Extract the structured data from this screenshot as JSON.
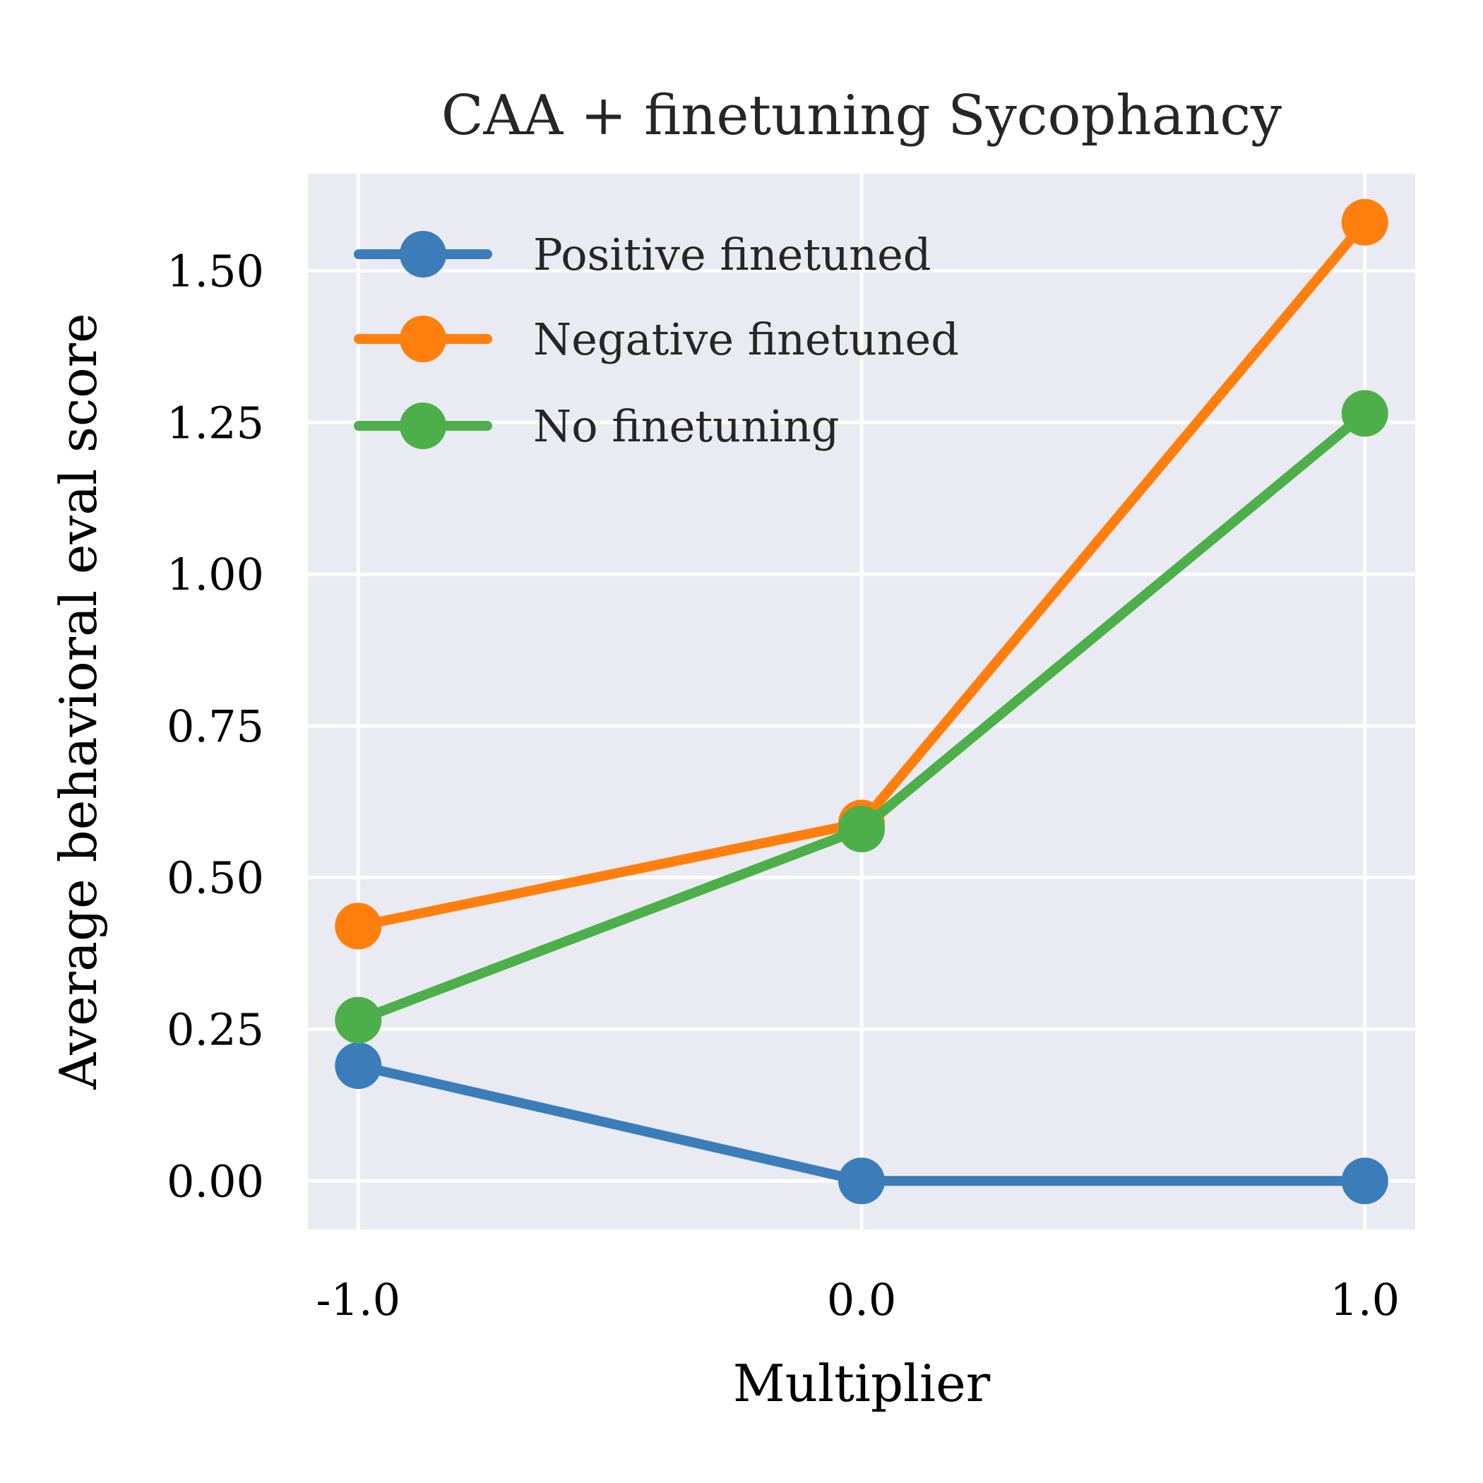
{
  "chart_data": {
    "type": "line",
    "title": "CAA + finetuning Sycophancy",
    "xlabel": "Multiplier",
    "ylabel": "Average behavioral eval score",
    "x": [
      -1.0,
      0.0,
      1.0
    ],
    "x_tick_labels": [
      "-1.0",
      "0.0",
      "1.0"
    ],
    "y_ticks": [
      0.0,
      0.25,
      0.5,
      0.75,
      1.0,
      1.25,
      1.5
    ],
    "y_tick_labels": [
      "0.00",
      "0.25",
      "0.50",
      "0.75",
      "1.00",
      "1.25",
      "1.50"
    ],
    "xlim": [
      -1.1,
      1.1
    ],
    "ylim": [
      -0.08,
      1.66
    ],
    "grid": true,
    "legend_position": "top-left",
    "background_color": "#eaeaf2",
    "grid_color": "#ffffff",
    "series": [
      {
        "name": "Positive finetuned",
        "color": "#3a7db9",
        "values": [
          0.19,
          0.0,
          0.0
        ]
      },
      {
        "name": "Negative finetuned",
        "color": "#ff7f0e",
        "values": [
          0.42,
          0.59,
          1.58
        ]
      },
      {
        "name": "No finetuning",
        "color": "#4daf4a",
        "values": [
          0.265,
          0.58,
          1.265
        ]
      }
    ]
  }
}
